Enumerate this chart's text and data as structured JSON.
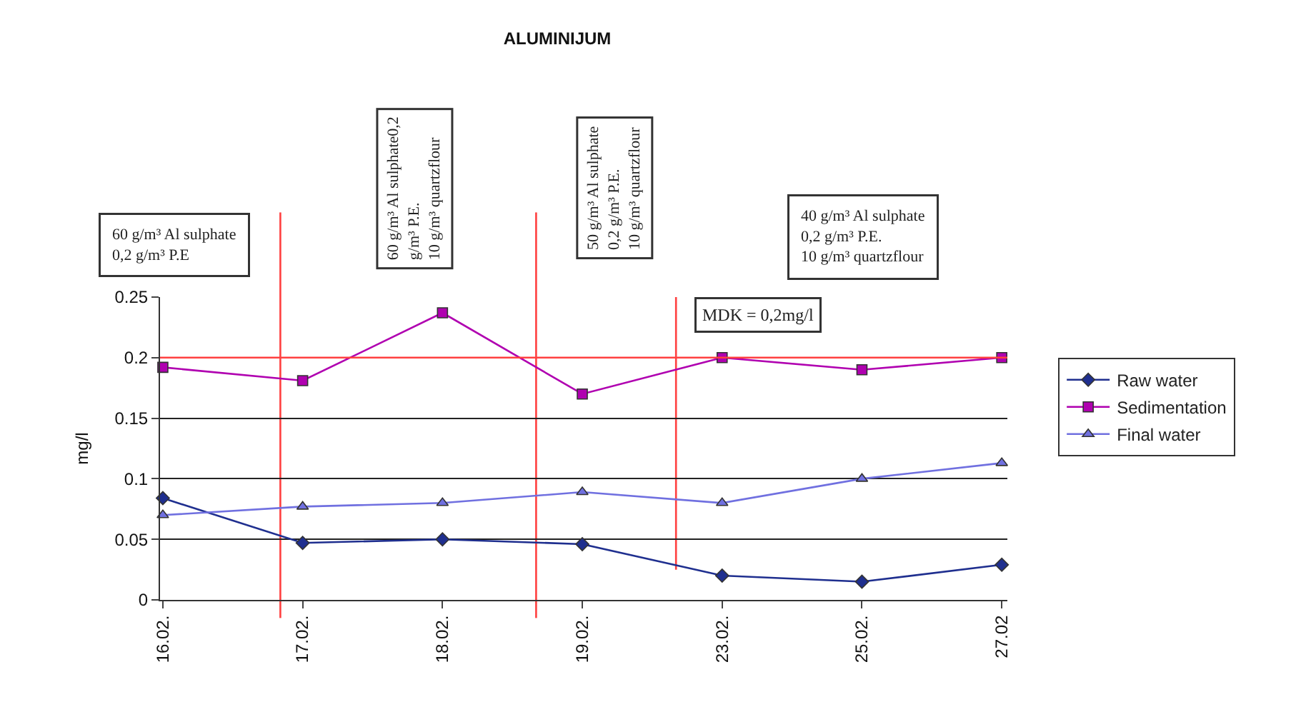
{
  "chart_data": {
    "type": "line",
    "title": "ALUMINIJUM",
    "ylabel": "mg/l",
    "categories": [
      "16.02.",
      "17.02.",
      "18.02.",
      "19.02.",
      "23.02.",
      "25.02.",
      "27.02"
    ],
    "series": [
      {
        "name": "Raw water",
        "color": "#1f2f8f",
        "marker": "diamond",
        "values": [
          0.084,
          0.047,
          0.05,
          0.046,
          0.02,
          0.015,
          0.029
        ]
      },
      {
        "name": "Sedimentation",
        "color": "#b000b0",
        "marker": "square",
        "values": [
          0.192,
          0.181,
          0.237,
          0.17,
          0.2,
          0.19,
          0.2
        ]
      },
      {
        "name": "Final water",
        "color": "#7070e0",
        "marker": "triangle",
        "values": [
          0.07,
          0.077,
          0.08,
          0.089,
          0.08,
          0.1,
          0.113
        ]
      }
    ],
    "ylim": [
      0,
      0.25
    ],
    "yticks": [
      0,
      0.05,
      0.1,
      0.15,
      0.2,
      0.25
    ],
    "grid": "y",
    "legend": "right",
    "ref_lines": [
      {
        "axis": "y",
        "value": 0.2,
        "label": "MDK = 0,2mg/l",
        "color": "#ff4040"
      }
    ],
    "annotations": [
      "60 g/m³ Al sulphate\n0,2 g/m³ P.E",
      "60 g/m³ Al sulphate0,2\ng/m³ P.E.\n10 g/m³ quartzflour",
      "50 g/m³ Al sulphate\n0,2 g/m³ P.E.\n10 g/m³ quartzflour",
      "40 g/m³ Al sulphate\n0,2 g/m³ P.E.\n10 g/m³ quartzflour"
    ]
  }
}
